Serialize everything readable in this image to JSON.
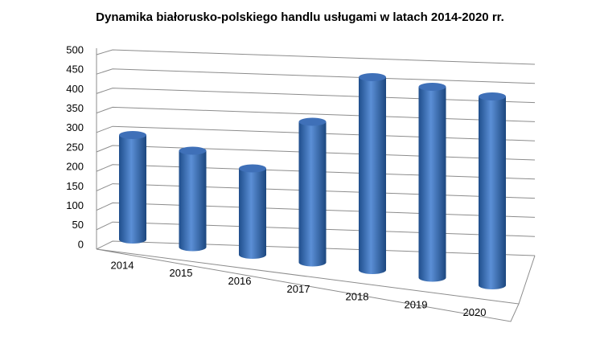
{
  "chart_data": {
    "type": "bar3d",
    "title": "Dynamika białorusko-polskiego handlu usługami w latach 2014-2020 rr.",
    "categories": [
      "2014",
      "2015",
      "2016",
      "2017",
      "2018",
      "2019",
      "2020"
    ],
    "values": [
      260,
      240,
      215,
      350,
      480,
      475,
      470
    ],
    "color": "#4f81bd",
    "ylim": [
      0,
      500
    ],
    "yticks": [
      0,
      50,
      100,
      150,
      200,
      250,
      300,
      350,
      400,
      450,
      500
    ],
    "grid": true
  }
}
